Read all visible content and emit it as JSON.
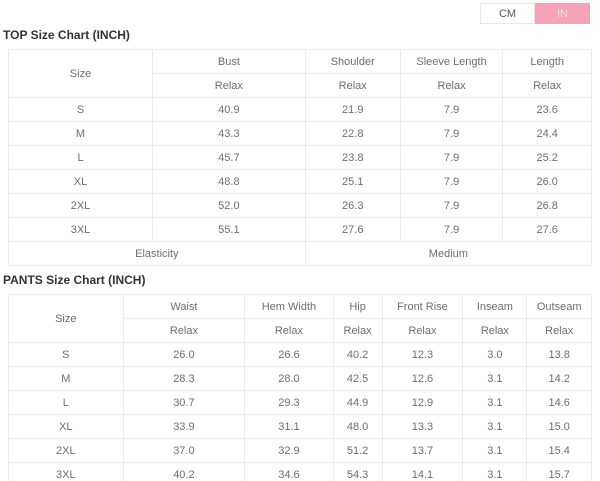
{
  "unit_toggle": {
    "cm_label": "CM",
    "in_label": "IN",
    "active": "IN",
    "active_bg_color": "#f5a3b8",
    "active_text_color": "#fbd9e1"
  },
  "top_chart": {
    "title": "TOP Size Chart (INCH)",
    "size_header": "Size",
    "sub_header": "Relax",
    "columns": [
      {
        "label": "Bust",
        "sub": "Relax"
      },
      {
        "label": "Shoulder",
        "sub": "Relax"
      },
      {
        "label": "Sleeve Length",
        "sub": "Relax"
      },
      {
        "label": "Length",
        "sub": "Relax"
      }
    ],
    "rows": [
      {
        "size": "S",
        "values": [
          "40.9",
          "21.9",
          "7.9",
          "23.6"
        ]
      },
      {
        "size": "M",
        "values": [
          "43.3",
          "22.8",
          "7.9",
          "24.4"
        ]
      },
      {
        "size": "L",
        "values": [
          "45.7",
          "23.8",
          "7.9",
          "25.2"
        ]
      },
      {
        "size": "XL",
        "values": [
          "48.8",
          "25.1",
          "7.9",
          "26.0"
        ]
      },
      {
        "size": "2XL",
        "values": [
          "52.0",
          "26.3",
          "7.9",
          "26.8"
        ]
      },
      {
        "size": "3XL",
        "values": [
          "55.1",
          "27.6",
          "7.9",
          "27.6"
        ]
      }
    ],
    "footer": {
      "label": "Elasticity",
      "value": "Medium"
    }
  },
  "pants_chart": {
    "title": "PANTS Size Chart (INCH)",
    "size_header": "Size",
    "sub_header": "Relax",
    "columns": [
      {
        "label": "Waist",
        "sub": "Relax"
      },
      {
        "label": "Hem Width",
        "sub": "Relax"
      },
      {
        "label": "Hip",
        "sub": "Relax"
      },
      {
        "label": "Front Rise",
        "sub": "Relax"
      },
      {
        "label": "Inseam",
        "sub": "Relax"
      },
      {
        "label": "Outseam",
        "sub": "Relax"
      }
    ],
    "rows": [
      {
        "size": "S",
        "values": [
          "26.0",
          "26.6",
          "40.2",
          "12.3",
          "3.0",
          "13.8"
        ]
      },
      {
        "size": "M",
        "values": [
          "28.3",
          "28.0",
          "42.5",
          "12.6",
          "3.1",
          "14.2"
        ]
      },
      {
        "size": "L",
        "values": [
          "30.7",
          "29.3",
          "44.9",
          "12.9",
          "3.1",
          "14.6"
        ]
      },
      {
        "size": "XL",
        "values": [
          "33.9",
          "31.1",
          "48.0",
          "13.3",
          "3.1",
          "15.0"
        ]
      },
      {
        "size": "2XL",
        "values": [
          "37.0",
          "32.9",
          "51.2",
          "13.7",
          "3.1",
          "15.4"
        ]
      },
      {
        "size": "3XL",
        "values": [
          "40.2",
          "34.6",
          "54.3",
          "14.1",
          "3.1",
          "15.7"
        ]
      }
    ]
  }
}
